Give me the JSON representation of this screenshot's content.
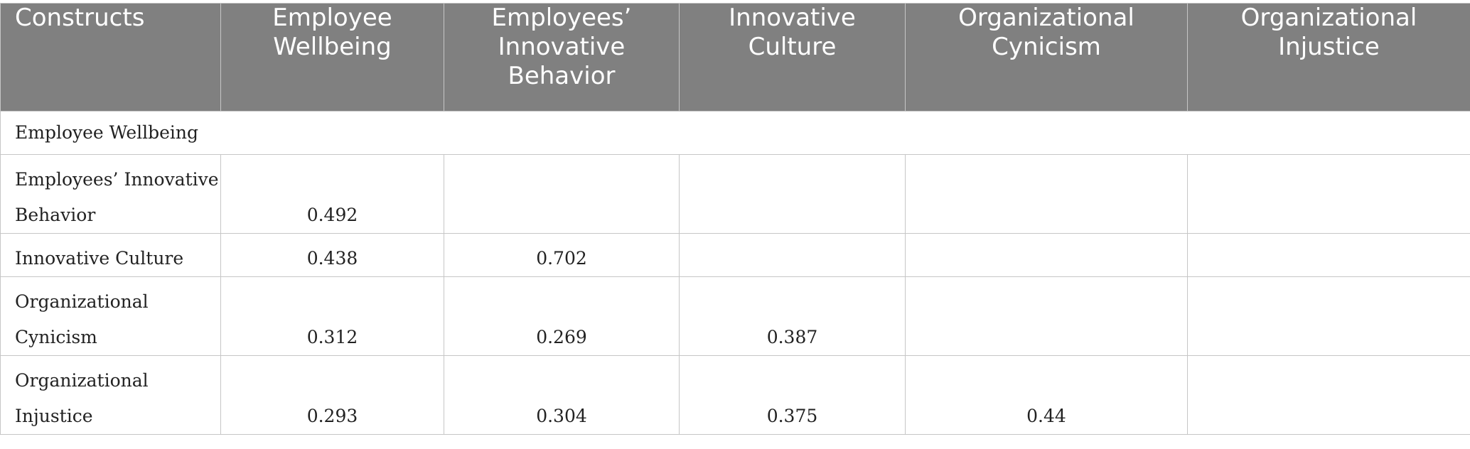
{
  "table": {
    "columns": [
      [
        "Constructs"
      ],
      [
        "Employee",
        "Wellbeing"
      ],
      [
        "Employees’",
        "Innovative",
        "Behavior"
      ],
      [
        "Innovative",
        "Culture"
      ],
      [
        "Organizational",
        "Cynicism"
      ],
      [
        "Organizational",
        "Injustice"
      ]
    ],
    "rows": [
      {
        "label": [
          "Employee Wellbeing"
        ],
        "values": []
      },
      {
        "label": [
          "Employees’ Innovative",
          "Behavior"
        ],
        "values": [
          "0.492",
          "",
          "",
          "",
          ""
        ]
      },
      {
        "label": [
          "Innovative Culture"
        ],
        "values": [
          "0.438",
          "0.702",
          "",
          "",
          ""
        ]
      },
      {
        "label": [
          "Organizational",
          "Cynicism"
        ],
        "values": [
          "0.312",
          "0.269",
          "0.387",
          "",
          ""
        ]
      },
      {
        "label": [
          "Organizational",
          "Injustice"
        ],
        "values": [
          "0.293",
          "0.304",
          "0.375",
          "0.44",
          ""
        ]
      }
    ]
  }
}
